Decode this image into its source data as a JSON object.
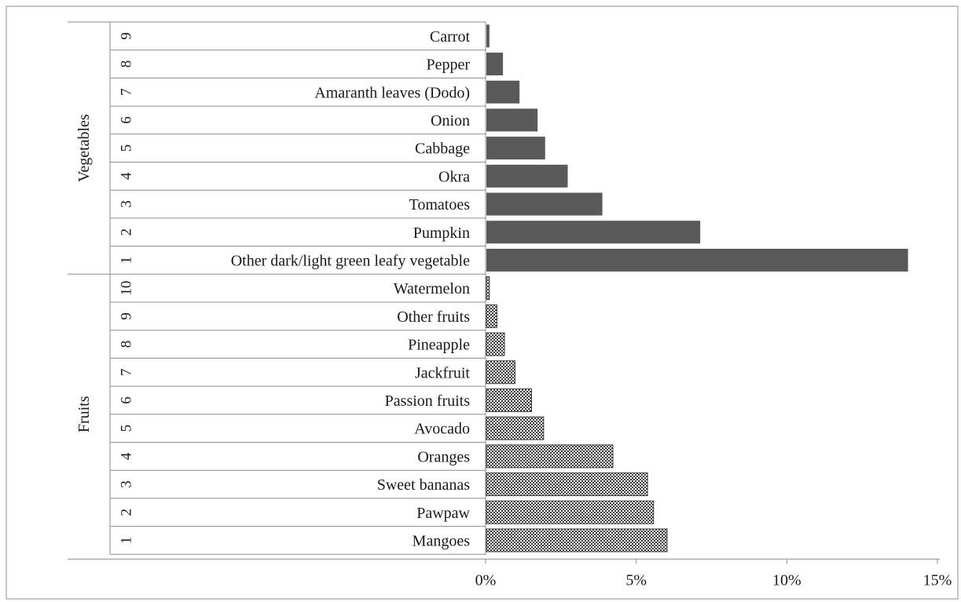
{
  "chart_data": {
    "type": "bar",
    "orientation": "horizontal",
    "x_ticks": [
      "0%",
      "5%",
      "10%",
      "15%"
    ],
    "xlim": [
      0,
      15
    ],
    "x_unit": "%",
    "grid": false,
    "groups": [
      {
        "name": "Vegetables",
        "fill": "#595959",
        "pattern": "solid",
        "items": [
          {
            "rank": "9",
            "label": "Carrot",
            "value": 0.1
          },
          {
            "rank": "8",
            "label": "Pepper",
            "value": 0.55
          },
          {
            "rank": "7",
            "label": "Amaranth leaves (Dodo)",
            "value": 1.1
          },
          {
            "rank": "6",
            "label": "Onion",
            "value": 1.7
          },
          {
            "rank": "5",
            "label": "Cabbage",
            "value": 1.95
          },
          {
            "rank": "4",
            "label": "Okra",
            "value": 2.7
          },
          {
            "rank": "3",
            "label": "Tomatoes",
            "value": 3.85
          },
          {
            "rank": "2",
            "label": "Pumpkin",
            "value": 7.1
          },
          {
            "rank": "1",
            "label": "Other dark/light green leafy vegetable",
            "value": 14.0
          }
        ]
      },
      {
        "name": "Fruits",
        "fill": "#7a7a7a",
        "pattern": "checkered",
        "items": [
          {
            "rank": "10",
            "label": "Watermelon",
            "value": 0.1
          },
          {
            "rank": "9",
            "label": "Other fruits",
            "value": 0.35
          },
          {
            "rank": "8",
            "label": "Pineapple",
            "value": 0.6
          },
          {
            "rank": "7",
            "label": "Jackfruit",
            "value": 0.95
          },
          {
            "rank": "6",
            "label": "Passion fruits",
            "value": 1.5
          },
          {
            "rank": "5",
            "label": "Avocado",
            "value": 1.9
          },
          {
            "rank": "4",
            "label": "Oranges",
            "value": 4.2
          },
          {
            "rank": "3",
            "label": "Sweet bananas",
            "value": 5.35
          },
          {
            "rank": "2",
            "label": "Pawpaw",
            "value": 5.55
          },
          {
            "rank": "1",
            "label": "Mangoes",
            "value": 6.0
          }
        ]
      }
    ]
  }
}
